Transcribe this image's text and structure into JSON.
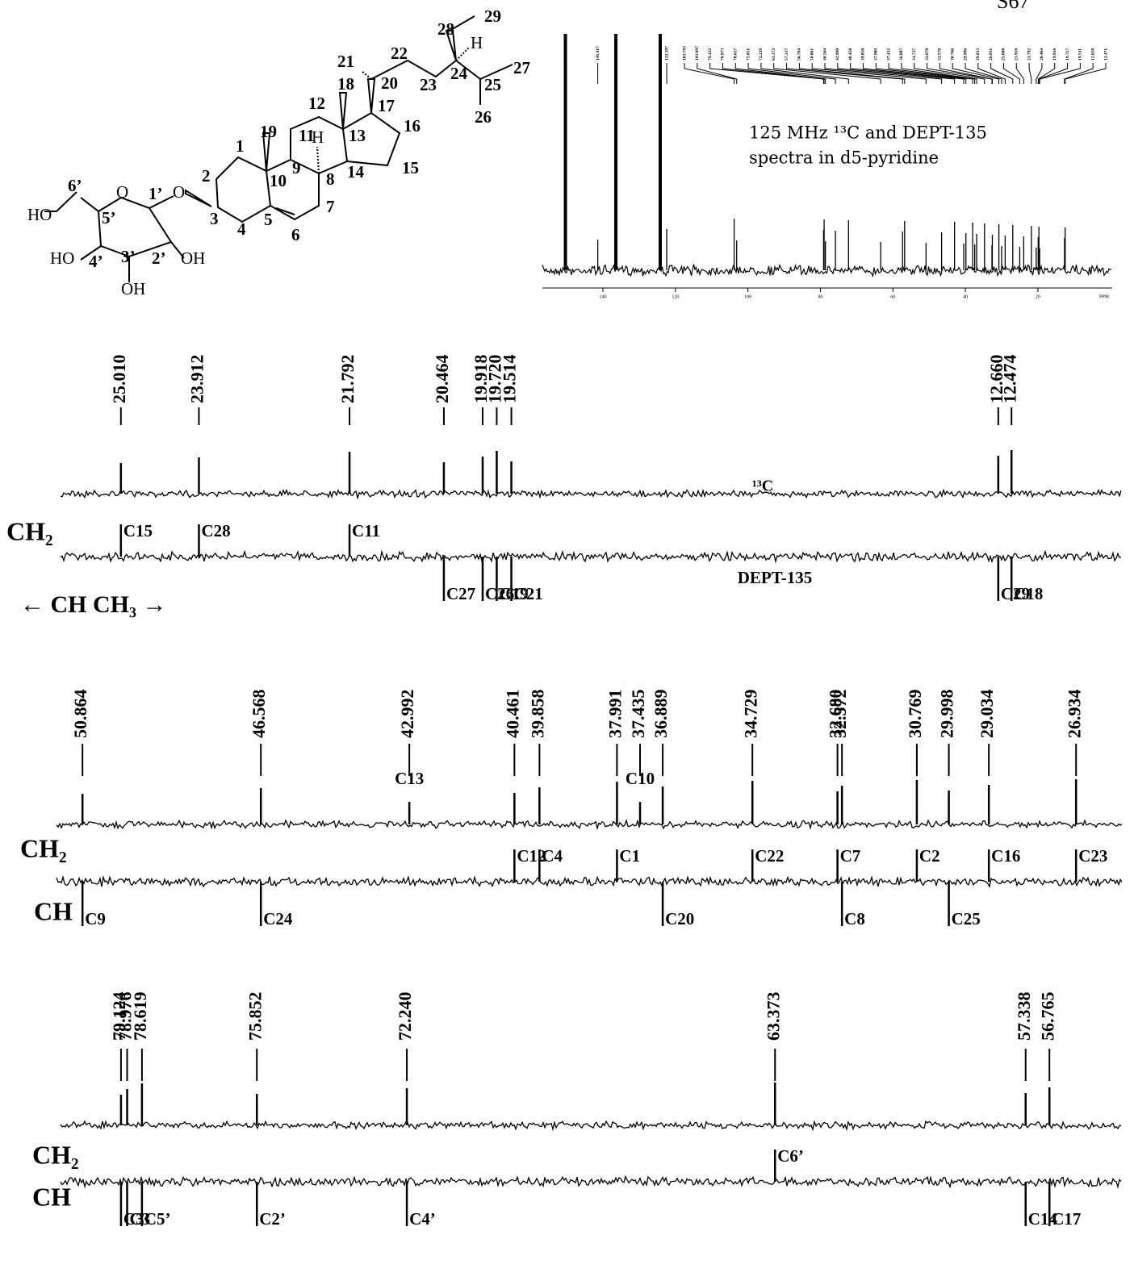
{
  "page_number": "S67",
  "structure": {
    "labels": [
      "29",
      "28",
      "H",
      "21",
      "22",
      "20",
      "23",
      "24",
      "25",
      "27",
      "18",
      "12",
      "17",
      "26",
      "19",
      "11",
      "H",
      "13",
      "16",
      "1",
      "9",
      "10",
      "8",
      "14",
      "15",
      "2",
      "6’",
      "O",
      "1’",
      "O",
      "3",
      "5",
      "7",
      "4",
      "6",
      "HO",
      "5’",
      "HO",
      "4’",
      "3’",
      "2’",
      "OH",
      "OH"
    ]
  },
  "inset": {
    "caption": [
      "125 MHz ¹³C  and DEPT-135",
      "spectra in d5-pyridine"
    ],
    "xlim": [
      156.7,
      -0.5
    ],
    "xticks": [
      140,
      120,
      100,
      80,
      60,
      40,
      20
    ],
    "x_unit": "PPM",
    "peak_labels": [
      {
        "value": 150.35,
        "label": "150.350"
      },
      {
        "value": 141.417,
        "label": "141.417"
      },
      {
        "value": 122.397,
        "label": "122.397"
      },
      {
        "value": 103.793,
        "label": "103.793"
      },
      {
        "value": 103.097,
        "label": "103.097"
      },
      {
        "value": 79.122,
        "label": "79.122"
      },
      {
        "value": 78.973,
        "label": "78.973"
      },
      {
        "value": 78.617,
        "label": "78.617"
      },
      {
        "value": 75.851,
        "label": "75.851"
      },
      {
        "value": 72.239,
        "label": "72.239"
      },
      {
        "value": 63.372,
        "label": "63.372"
      },
      {
        "value": 57.337,
        "label": "57.337"
      },
      {
        "value": 56.764,
        "label": "56.764"
      },
      {
        "value": 50.861,
        "label": "50.861"
      },
      {
        "value": 46.564,
        "label": "46.564"
      },
      {
        "value": 42.99,
        "label": "42.990"
      },
      {
        "value": 40.458,
        "label": "40.458"
      },
      {
        "value": 39.858,
        "label": "39.858"
      },
      {
        "value": 37.989,
        "label": "37.989"
      },
      {
        "value": 37.432,
        "label": "37.432"
      },
      {
        "value": 36.887,
        "label": "36.887"
      },
      {
        "value": 34.727,
        "label": "34.727"
      },
      {
        "value": 32.678,
        "label": "32.678"
      },
      {
        "value": 32.57,
        "label": "32.570"
      },
      {
        "value": 30.766,
        "label": "30.766"
      },
      {
        "value": 29.996,
        "label": "29.996"
      },
      {
        "value": 29.033,
        "label": "29.033"
      },
      {
        "value": 26.931,
        "label": "26.931"
      },
      {
        "value": 25.008,
        "label": "25.008"
      },
      {
        "value": 23.91,
        "label": "23.910"
      },
      {
        "value": 21.792,
        "label": "21.792"
      },
      {
        "value": 20.464,
        "label": "20.464"
      },
      {
        "value": 19.916,
        "label": "19.916"
      },
      {
        "value": 19.717,
        "label": "19.717"
      },
      {
        "value": 19.511,
        "label": "19.511"
      },
      {
        "value": 12.658,
        "label": "12.658"
      },
      {
        "value": 12.471,
        "label": "12.471"
      }
    ]
  },
  "panels": [
    {
      "xlim": [
        25.86,
        10.92
      ],
      "trace_labels": [
        "¹³C",
        "DEPT-135",
        "CH₂",
        "← CH   CH₃ →"
      ],
      "peaks": [
        {
          "shift": {
            "value": 25.01,
            "label": "25.010"
          },
          "assignment": "C15",
          "dept": "up"
        },
        {
          "shift": {
            "value": 23.912,
            "label": "23.912"
          },
          "assignment": "C28",
          "dept": "up"
        },
        {
          "shift": {
            "value": 21.792,
            "label": "21.792"
          },
          "assignment": "C11",
          "dept": "up"
        },
        {
          "shift": {
            "value": 20.464,
            "label": "20.464"
          },
          "assignment": "C27",
          "dept": "down"
        },
        {
          "shift": {
            "value": 19.918,
            "label": "19.918"
          },
          "assignment": "C26",
          "dept": "down"
        },
        {
          "shift": {
            "value": 19.72,
            "label": "19.720"
          },
          "assignment": "C19",
          "dept": "down"
        },
        {
          "shift": {
            "value": 19.514,
            "label": "19.514"
          },
          "assignment": "C21",
          "dept": "down"
        },
        {
          "shift": {
            "value": 12.66,
            "label": "12.660"
          },
          "assignment": "C29",
          "dept": "down"
        },
        {
          "shift": {
            "value": 12.474,
            "label": "12.474"
          },
          "assignment": "C18",
          "dept": "down"
        }
      ]
    },
    {
      "xlim": [
        51.49,
        25.83
      ],
      "trace_labels": [
        "CH₂",
        "CH"
      ],
      "peaks": [
        {
          "shift": {
            "value": 50.864,
            "label": "50.864"
          },
          "assignment": "C9",
          "dept": "down"
        },
        {
          "shift": {
            "value": 46.568,
            "label": "46.568"
          },
          "assignment": "C24",
          "dept": "down"
        },
        {
          "shift": {
            "value": 42.992,
            "label": "42.992"
          },
          "assignment": "C13",
          "dept": "absent"
        },
        {
          "shift": {
            "value": 40.461,
            "label": "40.461"
          },
          "assignment": "C12",
          "dept": "up"
        },
        {
          "shift": {
            "value": 39.858,
            "label": "39.858"
          },
          "assignment": "C4",
          "dept": "up"
        },
        {
          "shift": {
            "value": 37.991,
            "label": "37.991"
          },
          "assignment": "C1",
          "dept": "up"
        },
        {
          "shift": {
            "value": 37.435,
            "label": "37.435"
          },
          "assignment": "C10",
          "dept": "absent"
        },
        {
          "shift": {
            "value": 36.889,
            "label": "36.889"
          },
          "assignment": "C20",
          "dept": "down"
        },
        {
          "shift": {
            "value": 34.729,
            "label": "34.729"
          },
          "assignment": "C22",
          "dept": "up"
        },
        {
          "shift": {
            "value": 32.68,
            "label": "32.680"
          },
          "assignment": "C7",
          "dept": "up"
        },
        {
          "shift": {
            "value": 32.572,
            "label": "32.572"
          },
          "assignment": "C8",
          "dept": "down"
        },
        {
          "shift": {
            "value": 30.769,
            "label": "30.769"
          },
          "assignment": "C2",
          "dept": "up"
        },
        {
          "shift": {
            "value": 29.998,
            "label": "29.998"
          },
          "assignment": "C25",
          "dept": "down"
        },
        {
          "shift": {
            "value": 29.034,
            "label": "29.034"
          },
          "assignment": "C16",
          "dept": "up"
        },
        {
          "shift": {
            "value": 26.934,
            "label": "26.934"
          },
          "assignment": "C23",
          "dept": "up"
        }
      ]
    },
    {
      "xlim": [
        80.58,
        55.02
      ],
      "trace_labels": [
        "CH₂",
        "CH"
      ],
      "peaks": [
        {
          "shift": {
            "value": 79.124,
            "label": "79.124"
          },
          "assignment": "C3’",
          "dept": "down"
        },
        {
          "shift": {
            "value": 78.976,
            "label": "78.976"
          },
          "assignment": "C3",
          "dept": "down"
        },
        {
          "shift": {
            "value": 78.619,
            "label": "78.619"
          },
          "assignment": "C5’",
          "dept": "down"
        },
        {
          "shift": {
            "value": 75.852,
            "label": "75.852"
          },
          "assignment": "C2’",
          "dept": "down"
        },
        {
          "shift": {
            "value": 72.24,
            "label": "72.240"
          },
          "assignment": "C4’",
          "dept": "down"
        },
        {
          "shift": {
            "value": 63.373,
            "label": "63.373"
          },
          "assignment": "C6’",
          "dept": "up"
        },
        {
          "shift": {
            "value": 57.338,
            "label": "57.338"
          },
          "assignment": "C14",
          "dept": "down"
        },
        {
          "shift": {
            "value": 56.765,
            "label": "56.765"
          },
          "assignment": "C17",
          "dept": "down"
        }
      ]
    }
  ]
}
